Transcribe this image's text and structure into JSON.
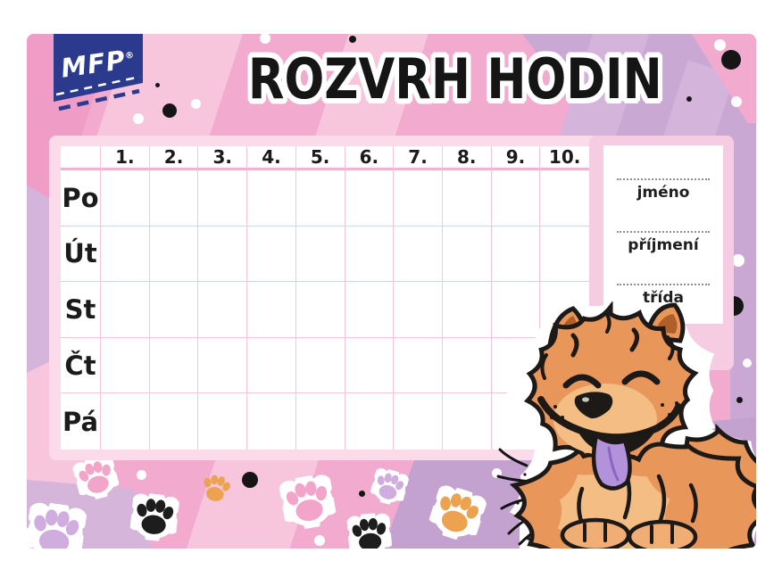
{
  "brand": {
    "name": "MFP",
    "registered_mark": "®"
  },
  "title": "ROZVRH HODIN",
  "timetable": {
    "corner_label": "",
    "period_columns": [
      "1.",
      "2.",
      "3.",
      "4.",
      "5.",
      "6.",
      "7.",
      "8.",
      "9.",
      "10."
    ],
    "day_rows": [
      "Po",
      "Út",
      "St",
      "Čt",
      "Pá"
    ],
    "cells_empty": true
  },
  "info_panel": {
    "fields": [
      {
        "label": "jméno"
      },
      {
        "label": "příjmení"
      },
      {
        "label": "třída"
      }
    ]
  },
  "illustration": {
    "name": "chow-chow-puppy",
    "pose": "smiling fluffy dog with tongue out"
  },
  "decor": {
    "paw_print_icon_colors": [
      "pink",
      "lilac",
      "black",
      "orange"
    ],
    "dot_colors": [
      "white",
      "black"
    ]
  },
  "colors": {
    "card_pink": "#f2abce",
    "stripe_light": "#f7c6dc",
    "stripe_deep": "#ef9cc7",
    "mauve": "#c9a9d3",
    "mauve_deep": "#c3a2cf",
    "mauve_light": "#d4b4da",
    "lilac_patch": "#d5b5da",
    "table_frame": "#fbdbea",
    "grid_line": "#f5c6da",
    "header_line": "#f2b3d1",
    "panel_frame": "#f6cce3",
    "logo_blue": "#2c3a8e",
    "text_black": "#1b1b1b",
    "dog_coat": "#e8965a",
    "dog_light": "#f3bd84",
    "dog_paw": "#f0ae74",
    "dog_inner_ear": "#b05f28",
    "dog_outline": "#1c1917",
    "tongue": "#b392dc",
    "tongue_dark": "#8a67bf",
    "paw_black": "#1d1d1d",
    "paw_orange": "#eca24f",
    "paw_pink": "#f2a4c9",
    "paw_lilac": "#cfadde",
    "blob_white": "#ffffff"
  }
}
